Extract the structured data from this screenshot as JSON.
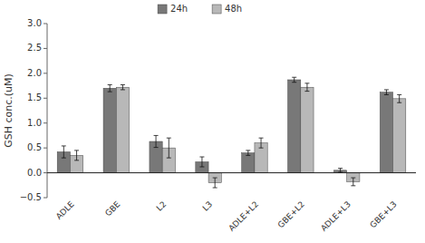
{
  "chart_data": {
    "type": "bar",
    "categories": [
      "ADLE",
      "GBE",
      "L2",
      "L3",
      "ADLE+L2",
      "GBE+L2",
      "ADLE+L3",
      "GBE+L3"
    ],
    "series": [
      {
        "name": "24h",
        "color": "#787878",
        "values": [
          0.42,
          1.7,
          0.63,
          0.22,
          0.4,
          1.87,
          0.05,
          1.62
        ],
        "errors": [
          0.12,
          0.07,
          0.12,
          0.1,
          0.05,
          0.05,
          0.04,
          0.05
        ]
      },
      {
        "name": "48h",
        "color": "#b8b8b8",
        "values": [
          0.35,
          1.72,
          0.5,
          -0.2,
          0.6,
          1.72,
          -0.18,
          1.49
        ],
        "errors": [
          0.1,
          0.05,
          0.2,
          0.1,
          0.1,
          0.08,
          0.08,
          0.08
        ]
      }
    ],
    "ylabel": "GSH conc.(uM)",
    "ylim": [
      -0.5,
      3.0
    ],
    "yticks": [
      {
        "value": -0.5,
        "label": "−0.5"
      },
      {
        "value": 0,
        "label": "0.0"
      },
      0.5,
      {
        "value": 1,
        "label": "1.0"
      },
      1.5,
      {
        "value": 2,
        "label": "2.0"
      },
      2.5,
      {
        "value": 3,
        "label": "3.0"
      }
    ],
    "legend": "top",
    "grid": false
  }
}
